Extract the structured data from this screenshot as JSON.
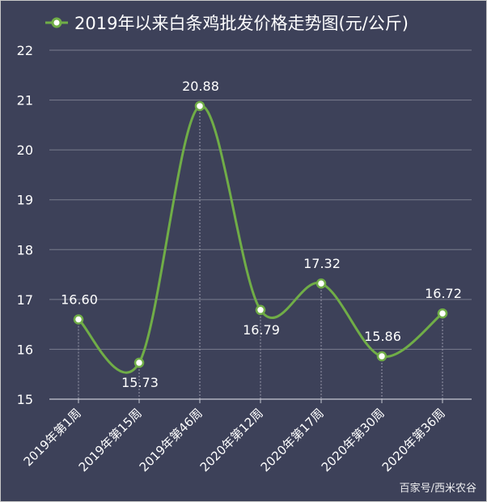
{
  "chart_data": {
    "type": "line",
    "smooth": true,
    "title": "",
    "xlabel": "",
    "ylabel": "",
    "ylim": [
      15,
      22
    ],
    "yticks": [
      15,
      16,
      17,
      18,
      19,
      20,
      21,
      22
    ],
    "grid": "horizontal",
    "legend_position": "top-left",
    "categories": [
      "2019年第1周",
      "2019年第15周",
      "2019年第46周",
      "2020年第12周",
      "2020年第17周",
      "2020年第30周",
      "2020年第36周"
    ],
    "series": [
      {
        "name": "2019年以来白条鸡批发价格走势图(元/公斤)",
        "values": [
          16.6,
          15.73,
          20.88,
          16.79,
          17.32,
          15.86,
          16.72
        ],
        "data_labels": [
          "16.60",
          "15.73",
          "20.88",
          "16.79",
          "17.32",
          "15.86",
          "16.72"
        ],
        "label_position": [
          "above",
          "below",
          "above",
          "below",
          "above",
          "above",
          "above"
        ]
      }
    ],
    "colors": {
      "background": "#3d4159",
      "line": "#70ad47",
      "marker_fill": "#ffffff",
      "grid": "#7a7d8e",
      "text": "#ffffff"
    }
  },
  "watermark": "百家号/西米农谷"
}
